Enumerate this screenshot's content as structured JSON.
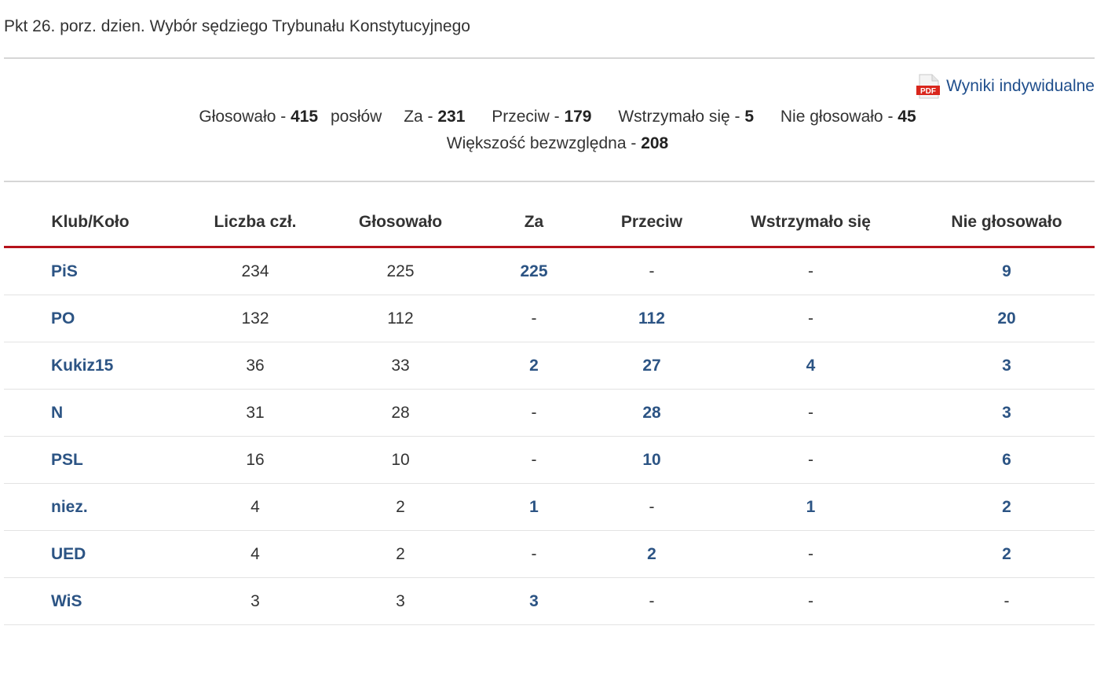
{
  "heading": "Pkt 26. porz. dzien. Wybór sędziego Trybunału Konstytucyjnego",
  "pdf_link": {
    "label": "Wyniki indywidualne",
    "icon": "pdf-icon",
    "icon_text": "PDF"
  },
  "summary": {
    "voted_label": "Głosowało - ",
    "voted": "415",
    "voted_unit": "posłów",
    "za_label": "Za - ",
    "za": "231",
    "przeciw_label": "Przeciw - ",
    "przeciw": "179",
    "wstrzymalo_label": "Wstrzymało się - ",
    "wstrzymalo": "5",
    "nie_label": "Nie głosowało - ",
    "nie": "45",
    "majority_label": "Większość bezwzględna - ",
    "majority": "208"
  },
  "table": {
    "headers": [
      "Klub/Koło",
      "Liczba czł.",
      "Głosowało",
      "Za",
      "Przeciw",
      "Wstrzymało się",
      "Nie głosowało"
    ],
    "rows": [
      {
        "club": "PiS",
        "members": "234",
        "voted": "225",
        "za": "225",
        "przeciw": "-",
        "wstrzymalo": "-",
        "nie": "9"
      },
      {
        "club": "PO",
        "members": "132",
        "voted": "112",
        "za": "-",
        "przeciw": "112",
        "wstrzymalo": "-",
        "nie": "20"
      },
      {
        "club": "Kukiz15",
        "members": "36",
        "voted": "33",
        "za": "2",
        "przeciw": "27",
        "wstrzymalo": "4",
        "nie": "3"
      },
      {
        "club": "N",
        "members": "31",
        "voted": "28",
        "za": "-",
        "przeciw": "28",
        "wstrzymalo": "-",
        "nie": "3"
      },
      {
        "club": "PSL",
        "members": "16",
        "voted": "10",
        "za": "-",
        "przeciw": "10",
        "wstrzymalo": "-",
        "nie": "6"
      },
      {
        "club": "niez.",
        "members": "4",
        "voted": "2",
        "za": "1",
        "przeciw": "-",
        "wstrzymalo": "1",
        "nie": "2"
      },
      {
        "club": "UED",
        "members": "4",
        "voted": "2",
        "za": "-",
        "przeciw": "2",
        "wstrzymalo": "-",
        "nie": "2"
      },
      {
        "club": "WiS",
        "members": "3",
        "voted": "3",
        "za": "3",
        "przeciw": "-",
        "wstrzymalo": "-",
        "nie": "-"
      }
    ]
  },
  "colors": {
    "link": "#2c5484",
    "accent_rule": "#b5121b",
    "pdf_red": "#d9261c"
  }
}
